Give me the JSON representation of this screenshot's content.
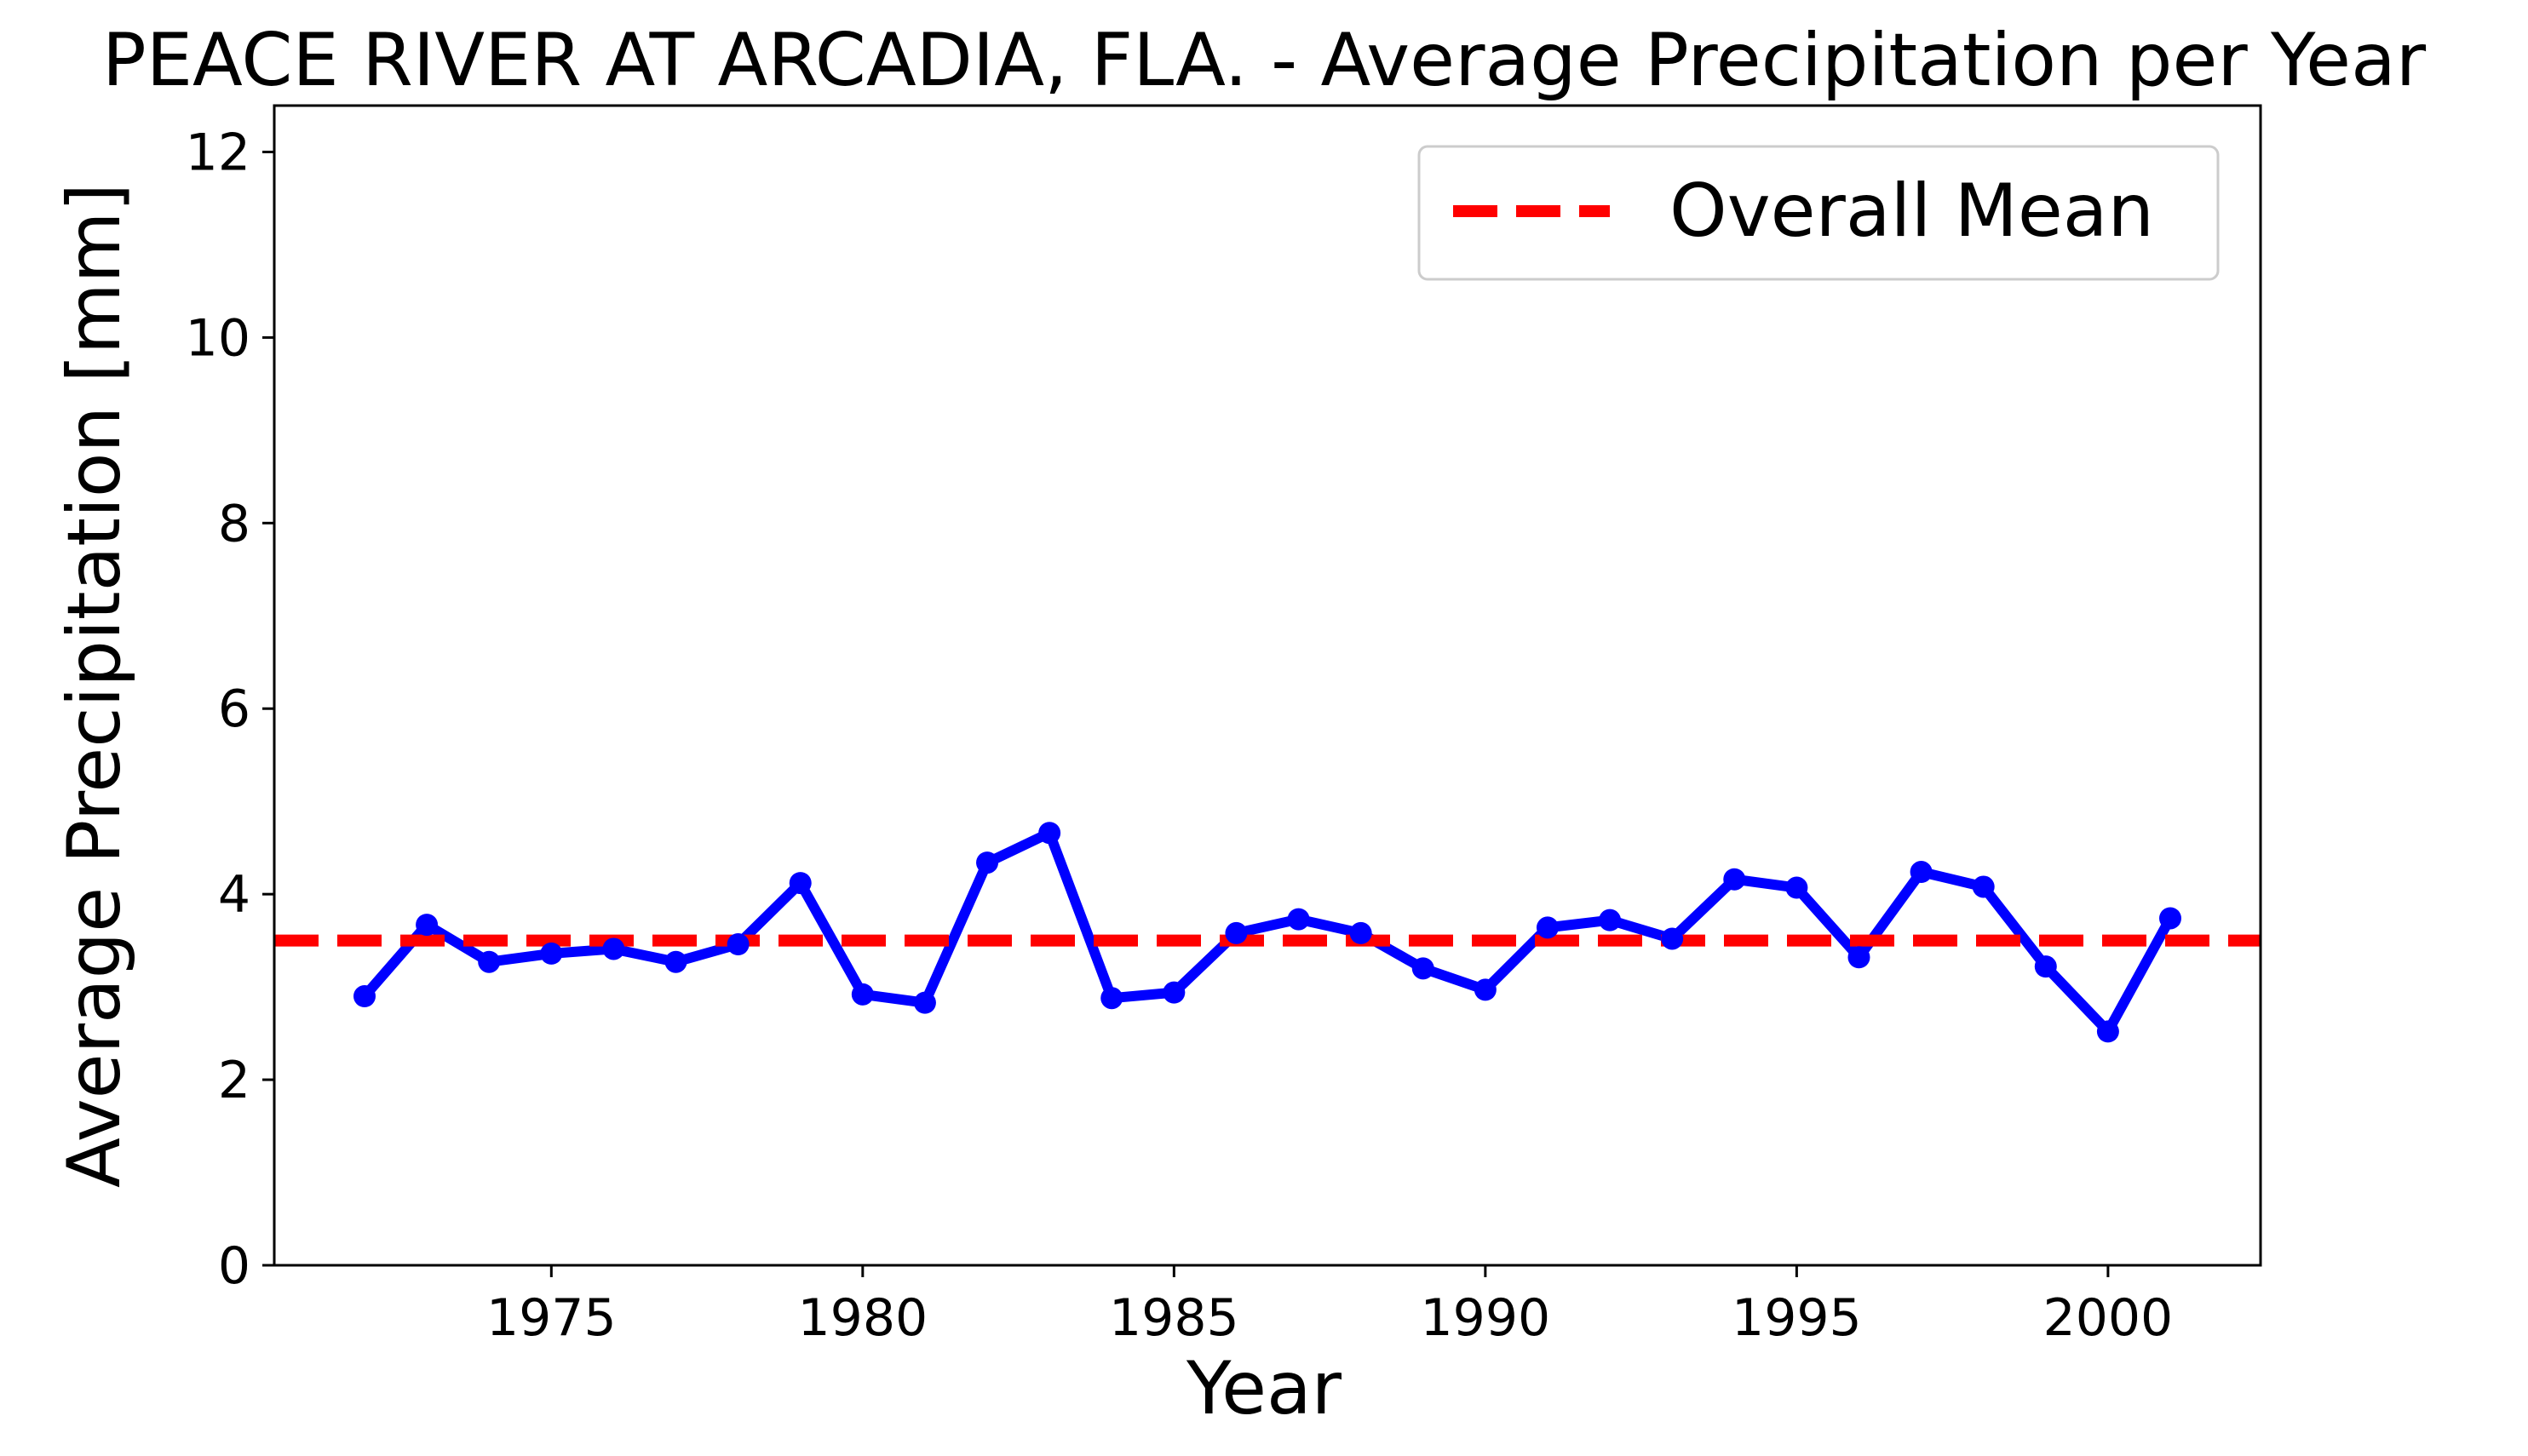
{
  "chart_data": {
    "type": "line",
    "title": "PEACE RIVER AT ARCADIA, FLA. - Average Precipitation per Year",
    "xlabel": "Year",
    "ylabel": "Average Precipitation [mm]",
    "xlim": [
      1970.55,
      2002.45
    ],
    "ylim": [
      0,
      12.5
    ],
    "xticks": [
      1975,
      1980,
      1985,
      1990,
      1995,
      2000
    ],
    "yticks": [
      0,
      2,
      4,
      6,
      8,
      10,
      12
    ],
    "grid": false,
    "legend_position": "top-right",
    "series": [
      {
        "color": "#0000ff",
        "x": [
          1972,
          1973,
          1974,
          1975,
          1976,
          1977,
          1978,
          1979,
          1980,
          1981,
          1982,
          1983,
          1984,
          1985,
          1986,
          1987,
          1988,
          1989,
          1990,
          1991,
          1992,
          1993,
          1994,
          1995,
          1996,
          1997,
          1998,
          1999,
          2000,
          2001
        ],
        "values": [
          2.9,
          3.67,
          3.27,
          3.36,
          3.41,
          3.27,
          3.46,
          4.12,
          2.92,
          2.83,
          4.34,
          4.66,
          2.88,
          2.94,
          3.58,
          3.73,
          3.58,
          3.2,
          2.97,
          3.64,
          3.72,
          3.52,
          4.16,
          4.07,
          3.32,
          4.24,
          4.08,
          3.22,
          2.52,
          3.74
        ]
      }
    ],
    "reference_lines": [
      {
        "name": "Overall Mean",
        "value": 3.5,
        "color": "#ff0000",
        "style": "dashed"
      }
    ]
  }
}
